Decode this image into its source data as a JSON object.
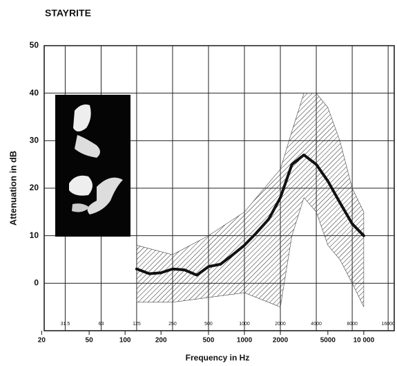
{
  "chart_data": {
    "type": "line",
    "title": "STAYRITE",
    "y_label": "Attenuation in dB",
    "x_label": "Frequency in Hz",
    "x": [
      125,
      160,
      200,
      250,
      315,
      400,
      500,
      630,
      800,
      1000,
      1250,
      1600,
      2000,
      2500,
      3150,
      4000,
      5000,
      6300,
      8000,
      10000
    ],
    "values": [
      3,
      2,
      2.2,
      3,
      2.8,
      1.7,
      3.5,
      4,
      6,
      8,
      10.5,
      13.5,
      18,
      25,
      27,
      25,
      21.5,
      17,
      12.5,
      10
    ],
    "color": "#111111",
    "band": {
      "x": [
        125,
        250,
        500,
        1000,
        2000,
        2500,
        3150,
        4000,
        5000,
        6300,
        8000,
        10000
      ],
      "upper": [
        8,
        6,
        10,
        15,
        24,
        32,
        40,
        40,
        37,
        30,
        20,
        15
      ],
      "lower": [
        -4,
        -4,
        -3,
        -2,
        -5,
        10,
        18,
        15,
        8,
        5,
        0,
        -5
      ]
    },
    "log_x": true,
    "xlim": [
      21,
      18000
    ],
    "ylim": [
      -10,
      50
    ],
    "yticks": [
      0,
      10,
      20,
      30,
      40,
      50
    ],
    "xticks": [
      20,
      50,
      100,
      200,
      500,
      1000,
      2000,
      5000,
      {
        "value": 10000,
        "label": "10 000"
      }
    ],
    "octave_ticks": [
      31.5,
      63,
      125,
      250,
      500,
      1000,
      2000,
      4000,
      8000,
      16000
    ],
    "grid": true
  }
}
